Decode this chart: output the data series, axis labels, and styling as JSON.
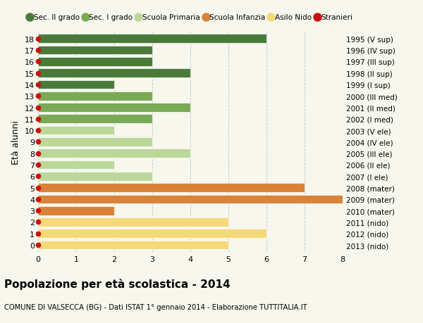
{
  "ages": [
    18,
    17,
    16,
    15,
    14,
    13,
    12,
    11,
    10,
    9,
    8,
    7,
    6,
    5,
    4,
    3,
    2,
    1,
    0
  ],
  "right_labels": [
    "1995 (V sup)",
    "1996 (IV sup)",
    "1997 (III sup)",
    "1998 (II sup)",
    "1999 (I sup)",
    "2000 (III med)",
    "2001 (II med)",
    "2002 (I med)",
    "2003 (V ele)",
    "2004 (IV ele)",
    "2005 (III ele)",
    "2006 (II ele)",
    "2007 (I ele)",
    "2008 (mater)",
    "2009 (mater)",
    "2010 (mater)",
    "2011 (nido)",
    "2012 (nido)",
    "2013 (nido)"
  ],
  "bar_values": [
    6,
    3,
    3,
    4,
    2,
    3,
    4,
    3,
    2,
    3,
    4,
    2,
    3,
    7,
    8,
    2,
    5,
    6,
    5
  ],
  "bar_colors": [
    "#4a7a3a",
    "#4a7a3a",
    "#4a7a3a",
    "#4a7a3a",
    "#4a7a3a",
    "#7aaa55",
    "#7aaa55",
    "#7aaa55",
    "#bbd89a",
    "#bbd89a",
    "#bbd89a",
    "#bbd89a",
    "#bbd89a",
    "#d9833a",
    "#d9833a",
    "#d9833a",
    "#f5d878",
    "#f5d878",
    "#f5d878"
  ],
  "stranieri_marker_ages": [
    18,
    17,
    16,
    15,
    14,
    13,
    12,
    11,
    10,
    9,
    8,
    7,
    6,
    5,
    4,
    3,
    2,
    1,
    0
  ],
  "legend_labels": [
    "Sec. II grado",
    "Sec. I grado",
    "Scuola Primaria",
    "Scuola Infanzia",
    "Asilo Nido",
    "Stranieri"
  ],
  "legend_colors": [
    "#4a7a3a",
    "#7aaa55",
    "#bbd89a",
    "#d9833a",
    "#f5d878",
    "#cc1111"
  ],
  "ylabel": "Età alunni",
  "title": "Popolazione per età scolastica - 2014",
  "subtitle": "COMUNE DI VALSECCA (BG) - Dati ISTAT 1° gennaio 2014 - Elaborazione TUTTITALIA.IT",
  "xlim": [
    0,
    8
  ],
  "xticks": [
    0,
    1,
    2,
    3,
    4,
    5,
    6,
    7,
    8
  ],
  "bg_color": "#f7f7ed",
  "bar_height": 0.78,
  "grid_color": "#cccccc"
}
